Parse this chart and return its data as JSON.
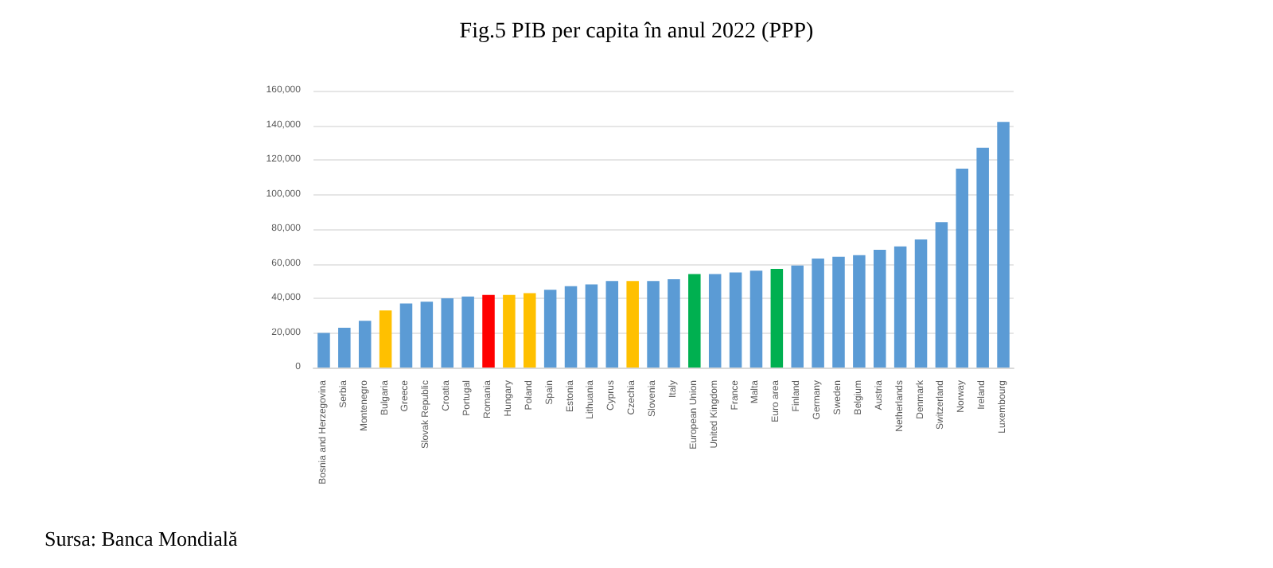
{
  "chart_data": {
    "type": "bar",
    "title": "Fig.5 PIB per capita în anul 2022 (PPP)",
    "categories": [
      "Bosnia and Herzegovina",
      "Serbia",
      "Montenegro",
      "Bulgaria",
      "Greece",
      "Slovak Republic",
      "Croatia",
      "Portugal",
      "Romania",
      "Hungary",
      "Poland",
      "Spain",
      "Estonia",
      "Lithuania",
      "Cyprus",
      "Czechia",
      "Slovenia",
      "Italy",
      "European Union",
      "United Kingdom",
      "France",
      "Malta",
      "Euro area",
      "Finland",
      "Germany",
      "Sweden",
      "Belgium",
      "Austria",
      "Netherlands",
      "Denmark",
      "Switzerland",
      "Norway",
      "Ireland",
      "Luxembourg"
    ],
    "values": [
      20000,
      23000,
      27000,
      33000,
      37000,
      38000,
      40000,
      41000,
      42000,
      42000,
      43000,
      45000,
      47000,
      48000,
      50000,
      50000,
      50000,
      51000,
      54000,
      54000,
      55000,
      56000,
      57000,
      59000,
      63000,
      64000,
      65000,
      68000,
      70000,
      74000,
      84000,
      115000,
      127000,
      142000
    ],
    "colors": [
      "#5b9bd5",
      "#5b9bd5",
      "#5b9bd5",
      "#ffc000",
      "#5b9bd5",
      "#5b9bd5",
      "#5b9bd5",
      "#5b9bd5",
      "#ff0000",
      "#ffc000",
      "#ffc000",
      "#5b9bd5",
      "#5b9bd5",
      "#5b9bd5",
      "#5b9bd5",
      "#ffc000",
      "#5b9bd5",
      "#5b9bd5",
      "#00b050",
      "#5b9bd5",
      "#5b9bd5",
      "#5b9bd5",
      "#00b050",
      "#5b9bd5",
      "#5b9bd5",
      "#5b9bd5",
      "#5b9bd5",
      "#5b9bd5",
      "#5b9bd5",
      "#5b9bd5",
      "#5b9bd5",
      "#5b9bd5",
      "#5b9bd5",
      "#5b9bd5"
    ],
    "ylim": [
      0,
      160000
    ],
    "yticks": [
      0,
      {
        "value": 20000,
        "label": "20,000"
      },
      {
        "value": 40000,
        "label": "40,000"
      },
      {
        "value": 60000,
        "label": "60,000"
      },
      {
        "value": 80000,
        "label": "80,000"
      },
      {
        "value": 100000,
        "label": "100,000"
      },
      {
        "value": 120000,
        "label": "120,000"
      },
      {
        "value": 140000,
        "label": "140,000"
      },
      {
        "value": 160000,
        "label": "160,000"
      }
    ],
    "grid": "y",
    "annotations": [
      "Sursa: Banca Mondială"
    ]
  }
}
